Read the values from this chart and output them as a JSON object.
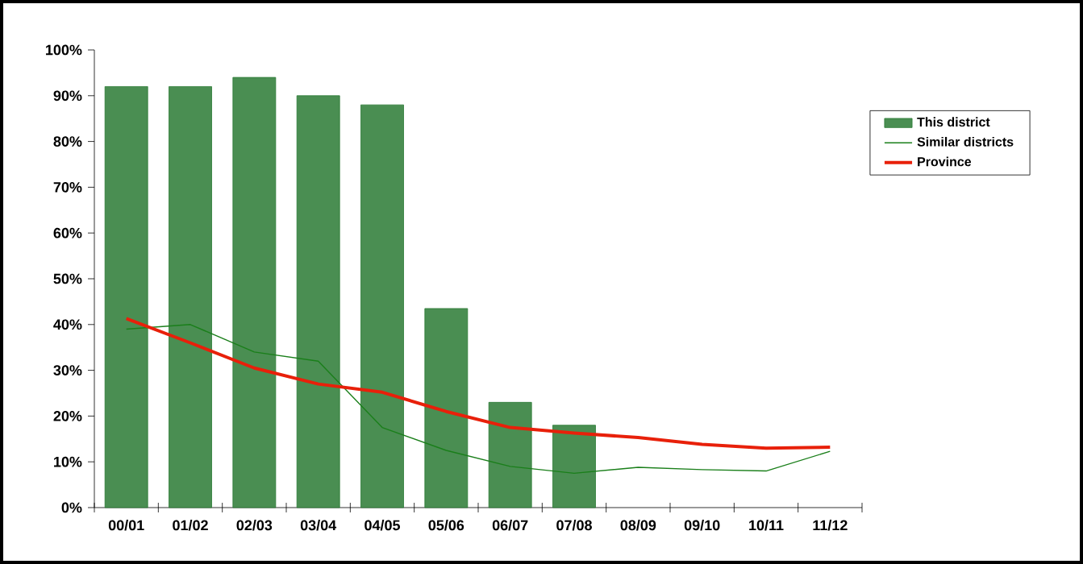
{
  "chart_data": {
    "type": "bar",
    "categories": [
      "00/01",
      "01/02",
      "02/03",
      "03/04",
      "04/05",
      "05/06",
      "06/07",
      "07/08",
      "08/09",
      "09/10",
      "10/11",
      "11/12"
    ],
    "series": [
      {
        "name": "This district",
        "color": "#2a7a34",
        "values": [
          92,
          92,
          94,
          90,
          88,
          43.5,
          23,
          18,
          null,
          null,
          null,
          null
        ]
      },
      {
        "name": "Similar districts",
        "type": "line",
        "color": "#1a7f1a",
        "values": [
          39,
          40,
          34,
          32,
          17.5,
          12.5,
          9,
          7.5,
          8.8,
          8.3,
          8,
          12.3
        ]
      },
      {
        "name": "Province",
        "type": "line",
        "color": "#e8200a",
        "values": [
          41.3,
          36,
          30.5,
          27,
          25.2,
          21,
          17.5,
          16.3,
          15.3,
          13.8,
          13,
          13.2
        ]
      }
    ],
    "ylim": [
      0,
      100
    ],
    "yticks": [
      {
        "value": 0,
        "label": "0%"
      },
      {
        "value": 10,
        "label": "10%"
      },
      {
        "value": 20,
        "label": "20%"
      },
      {
        "value": 30,
        "label": "30%"
      },
      {
        "value": 40,
        "label": "40%"
      },
      {
        "value": 50,
        "label": "50%"
      },
      {
        "value": 60,
        "label": "60%"
      },
      {
        "value": 70,
        "label": "70%"
      },
      {
        "value": 80,
        "label": "80%"
      },
      {
        "value": 90,
        "label": "90%"
      },
      {
        "value": 100,
        "label": "100%"
      }
    ],
    "legend": "right",
    "grid": false,
    "marker": "none",
    "line_style": "solid"
  }
}
